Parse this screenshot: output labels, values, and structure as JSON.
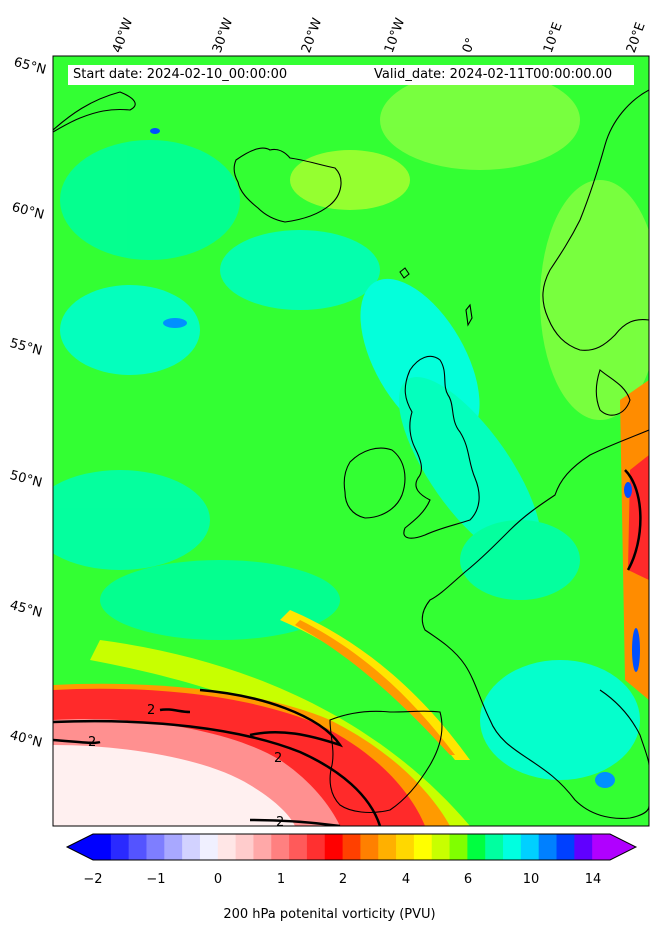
{
  "header": {
    "start_date": "Start date: 2024-02-10_00:00:00",
    "valid_date": "Valid_date: 2024-02-11T00:00:00.00"
  },
  "longitude_labels": [
    "40°W",
    "30°W",
    "20°W",
    "10°W",
    "0°",
    "10°E",
    "20°E"
  ],
  "latitude_labels": [
    "65°N",
    "60°N",
    "55°N",
    "50°N",
    "45°N",
    "40°N"
  ],
  "contour_label": "2",
  "colorbar": {
    "title": "200 hPa potenital vorticity (PVU)",
    "tick_labels": [
      "−2",
      "−1",
      "0",
      "1",
      "2",
      "4",
      "6",
      "10",
      "14"
    ],
    "colors": [
      "#0000ff",
      "#2a2aff",
      "#5454ff",
      "#7e7eff",
      "#a8a8ff",
      "#d2d2ff",
      "#f0f0ff",
      "#ffe6e6",
      "#ffcccc",
      "#ffa8a8",
      "#ff8080",
      "#ff5a5a",
      "#ff3030",
      "#ff0000",
      "#ff4000",
      "#ff8000",
      "#ffb000",
      "#ffd800",
      "#ffff00",
      "#c8ff00",
      "#80ff00",
      "#00ff40",
      "#00ffa0",
      "#00ffe0",
      "#00d0ff",
      "#0080ff",
      "#0040ff",
      "#6000ff",
      "#b000ff"
    ]
  },
  "field_colors": {
    "background": "#33ff33",
    "light_green": "#80ff40",
    "cyan": "#00ffcc",
    "aqua": "#00ffee",
    "blue": "#0090ff",
    "red": "#ff2a2a",
    "pink": "#ff9090",
    "white": "#fff0f0",
    "orange": "#ff8c00",
    "yellow": "#ffe600"
  }
}
